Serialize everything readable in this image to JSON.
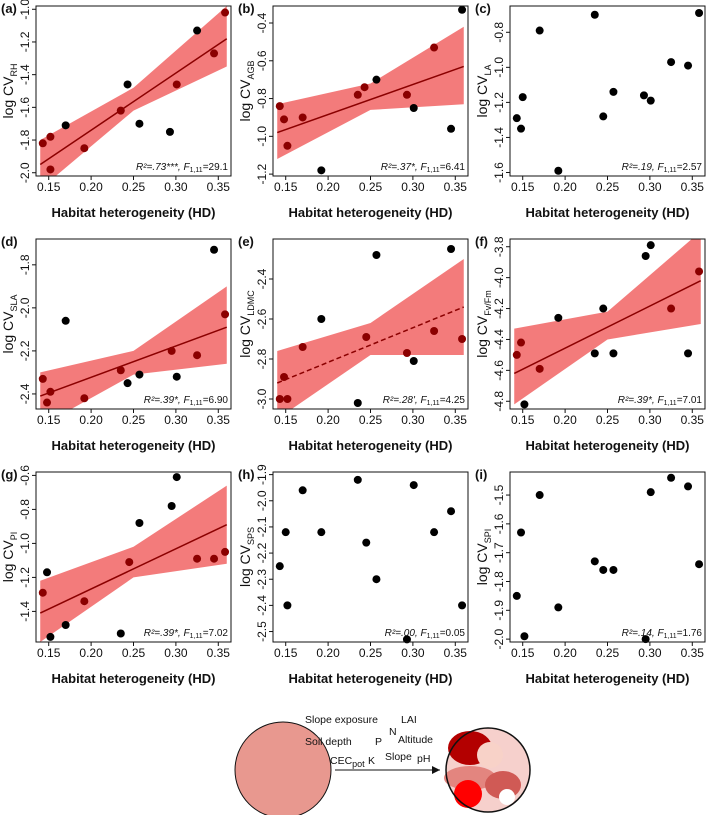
{
  "chart_data": [
    {
      "type": "scatter",
      "panel": "(a)",
      "ylabel": [
        "log CV",
        "RH"
      ],
      "xlabel": "Habitat heterogeneity (HD)",
      "x": [
        0.143,
        0.152,
        0.152,
        0.17,
        0.192,
        0.235,
        0.243,
        0.257,
        0.293,
        0.301,
        0.325,
        0.345,
        0.358
      ],
      "y": [
        -1.82,
        -1.78,
        -1.98,
        -1.71,
        -1.85,
        -1.62,
        -1.46,
        -1.7,
        -1.75,
        -1.46,
        -1.13,
        -1.27,
        -1.02
      ],
      "xlim": [
        0.135,
        0.365
      ],
      "xticks": [
        {
          "value": 0.15,
          "label": "0.15"
        },
        {
          "value": 0.2,
          "label": "0.20"
        },
        {
          "value": 0.25,
          "label": "0.25"
        },
        {
          "value": 0.3,
          "label": "0.30"
        },
        {
          "value": 0.35,
          "label": "0.35"
        }
      ],
      "ylim": [
        -2.02,
        -0.98
      ],
      "yticks": [
        {
          "value": -2,
          "label": "-2.0"
        },
        -1.8,
        -1.6,
        -1.4,
        -1.2,
        {
          "value": -1,
          "label": "-1.0"
        }
      ],
      "fit": {
        "x": [
          0.14,
          0.36
        ],
        "y": [
          -1.95,
          -1.18
        ],
        "dashed": false,
        "color": "#8b0000"
      },
      "band": {
        "x": [
          0.14,
          0.25,
          0.36
        ],
        "lower": [
          -2.1,
          -1.62,
          -1.35
        ],
        "upper": [
          -1.8,
          -1.48,
          -0.98
        ],
        "color": "#f26d6d"
      },
      "annotation": [
        "R²=.73***, ",
        "F",
        "1,11",
        "=29.1"
      ],
      "color": "#000000",
      "inside_color": "#8b0000"
    },
    {
      "type": "scatter",
      "panel": "(b)",
      "ylabel": [
        "log CV",
        "AGB"
      ],
      "xlabel": "Habitat heterogeneity (HD)",
      "x": [
        0.143,
        0.148,
        0.152,
        0.17,
        0.192,
        0.235,
        0.243,
        0.257,
        0.293,
        0.301,
        0.325,
        0.345,
        0.358
      ],
      "y": [
        -0.84,
        -0.91,
        -1.05,
        -0.9,
        -1.18,
        -0.78,
        -0.74,
        -0.7,
        -0.78,
        -0.85,
        -0.53,
        -0.96,
        -0.33
      ],
      "xlim": [
        0.135,
        0.365
      ],
      "xticks": [
        {
          "value": 0.15,
          "label": "0.15"
        },
        {
          "value": 0.2,
          "label": "0.20"
        },
        {
          "value": 0.25,
          "label": "0.25"
        },
        {
          "value": 0.3,
          "label": "0.30"
        },
        {
          "value": 0.35,
          "label": "0.35"
        }
      ],
      "ylim": [
        -1.21,
        -0.31
      ],
      "yticks": [
        -1.2,
        {
          "value": -1,
          "label": "-1.0"
        },
        -0.8,
        -0.6,
        -0.4
      ],
      "fit": {
        "x": [
          0.14,
          0.36
        ],
        "y": [
          -0.98,
          -0.63
        ],
        "dashed": false,
        "color": "#8b0000"
      },
      "band": {
        "x": [
          0.14,
          0.25,
          0.36
        ],
        "lower": [
          -1.12,
          -0.86,
          -0.83
        ],
        "upper": [
          -0.83,
          -0.72,
          -0.42
        ],
        "color": "#f26d6d"
      },
      "annotation": [
        "R²=.37*, ",
        "F",
        "1,11",
        "=6.41"
      ],
      "color": "#000000",
      "inside_color": "#8b0000"
    },
    {
      "type": "scatter",
      "panel": "(c)",
      "ylabel": [
        "log CV",
        "LA"
      ],
      "xlabel": "Habitat heterogeneity (HD)",
      "x": [
        0.143,
        0.148,
        0.15,
        0.17,
        0.192,
        0.235,
        0.245,
        0.257,
        0.293,
        0.301,
        0.325,
        0.345,
        0.358
      ],
      "y": [
        -1.29,
        -1.35,
        -1.17,
        -0.79,
        -1.59,
        -0.7,
        -1.28,
        -1.14,
        -1.16,
        -1.19,
        -0.97,
        -0.99,
        -0.69
      ],
      "xlim": [
        0.135,
        0.365
      ],
      "xticks": [
        {
          "value": 0.15,
          "label": "0.15"
        },
        {
          "value": 0.2,
          "label": "0.20"
        },
        {
          "value": 0.25,
          "label": "0.25"
        },
        {
          "value": 0.3,
          "label": "0.30"
        },
        {
          "value": 0.35,
          "label": "0.35"
        }
      ],
      "ylim": [
        -1.62,
        -0.65
      ],
      "yticks": [
        -1.6,
        -1.4,
        -1.2,
        {
          "value": -1,
          "label": "-1.0"
        },
        -0.8
      ],
      "annotation": [
        "R²=.19, ",
        "F",
        "1,11",
        "=2.57"
      ],
      "color": "#000000",
      "inside_color": "#8b0000"
    },
    {
      "type": "scatter",
      "panel": "(d)",
      "ylabel": [
        "log CV",
        "SLA"
      ],
      "xlabel": "Habitat heterogeneity (HD)",
      "x": [
        0.143,
        0.148,
        0.152,
        0.17,
        0.192,
        0.235,
        0.243,
        0.257,
        0.295,
        0.301,
        0.325,
        0.345,
        0.358
      ],
      "y": [
        -2.33,
        -2.44,
        -2.39,
        -2.06,
        -2.42,
        -2.29,
        -2.35,
        -2.31,
        -2.2,
        -2.32,
        -2.22,
        -1.73,
        -2.03
      ],
      "xlim": [
        0.135,
        0.365
      ],
      "xticks": [
        {
          "value": 0.15,
          "label": "0.15"
        },
        {
          "value": 0.2,
          "label": "0.20"
        },
        {
          "value": 0.25,
          "label": "0.25"
        },
        {
          "value": 0.3,
          "label": "0.30"
        },
        {
          "value": 0.35,
          "label": "0.35"
        }
      ],
      "ylim": [
        -2.47,
        -1.68
      ],
      "yticks": [
        -2.4,
        -2.2,
        {
          "value": -2,
          "label": "-2.0"
        },
        -1.8
      ],
      "fit": {
        "x": [
          0.14,
          0.36
        ],
        "y": [
          -2.41,
          -2.09
        ],
        "dashed": false,
        "color": "#8b0000"
      },
      "band": {
        "x": [
          0.14,
          0.25,
          0.36
        ],
        "lower": [
          -2.55,
          -2.31,
          -2.26
        ],
        "upper": [
          -2.3,
          -2.2,
          -1.9
        ],
        "color": "#f26d6d"
      },
      "annotation": [
        "R²=.39*, ",
        "F",
        "1,11",
        "=6.90"
      ],
      "color": "#000000",
      "inside_color": "#8b0000"
    },
    {
      "type": "scatter",
      "panel": "(e)",
      "ylabel": [
        "log CV",
        "LDMC"
      ],
      "xlabel": "Habitat heterogeneity (HD)",
      "x": [
        0.143,
        0.148,
        0.152,
        0.17,
        0.192,
        0.235,
        0.245,
        0.257,
        0.293,
        0.301,
        0.325,
        0.345,
        0.358
      ],
      "y": [
        -3,
        -2.89,
        -3,
        -2.74,
        -2.6,
        -3.02,
        -2.69,
        -2.28,
        -2.77,
        -2.81,
        -2.66,
        -2.25,
        -2.7
      ],
      "xlim": [
        0.135,
        0.365
      ],
      "xticks": [
        {
          "value": 0.15,
          "label": "0.15"
        },
        {
          "value": 0.2,
          "label": "0.20"
        },
        {
          "value": 0.25,
          "label": "0.25"
        },
        {
          "value": 0.3,
          "label": "0.30"
        },
        {
          "value": 0.35,
          "label": "0.35"
        }
      ],
      "ylim": [
        -3.05,
        -2.2
      ],
      "yticks": [
        {
          "value": -3,
          "label": "-3.0"
        },
        -2.8,
        -2.6,
        -2.4
      ],
      "fit": {
        "x": [
          0.14,
          0.36
        ],
        "y": [
          -2.92,
          -2.54
        ],
        "dashed": true,
        "color": "#8b0000"
      },
      "band": {
        "x": [
          0.14,
          0.25,
          0.36
        ],
        "lower": [
          -3.1,
          -2.78,
          -2.78
        ],
        "upper": [
          -2.76,
          -2.62,
          -2.3
        ],
        "color": "#f26d6d"
      },
      "annotation": [
        "R²=.28', ",
        "F",
        "1,11",
        "=4.25"
      ],
      "color": "#000000",
      "inside_color": "#8b0000"
    },
    {
      "type": "scatter",
      "panel": "(f)",
      "ylabel": [
        "log CV",
        "Fv/Fm"
      ],
      "xlabel": "Habitat heterogeneity (HD)",
      "x": [
        0.143,
        0.148,
        0.152,
        0.17,
        0.192,
        0.235,
        0.245,
        0.257,
        0.295,
        0.301,
        0.325,
        0.345,
        0.358
      ],
      "y": [
        -4.5,
        -4.42,
        -4.82,
        -4.59,
        -4.26,
        -4.49,
        -4.2,
        -4.49,
        -3.86,
        -3.79,
        -4.2,
        -4.49,
        -3.96
      ],
      "xlim": [
        0.135,
        0.365
      ],
      "xticks": [
        {
          "value": 0.15,
          "label": "0.15"
        },
        {
          "value": 0.2,
          "label": "0.20"
        },
        {
          "value": 0.25,
          "label": "0.25"
        },
        {
          "value": 0.3,
          "label": "0.30"
        },
        {
          "value": 0.35,
          "label": "0.35"
        }
      ],
      "ylim": [
        -4.85,
        -3.75
      ],
      "yticks": [
        -4.8,
        -4.6,
        -4.4,
        -4.2,
        {
          "value": -4,
          "label": "-4.0"
        },
        -3.8
      ],
      "fit": {
        "x": [
          0.14,
          0.36
        ],
        "y": [
          -4.62,
          -4.02
        ],
        "dashed": false,
        "color": "#8b0000"
      },
      "band": {
        "x": [
          0.14,
          0.25,
          0.36
        ],
        "lower": [
          -4.82,
          -4.4,
          -4.3
        ],
        "upper": [
          -4.33,
          -4.22,
          -3.7
        ],
        "color": "#f26d6d"
      },
      "annotation": [
        "R²=.39*, ",
        "F",
        "1,11",
        "=7.01"
      ],
      "color": "#000000",
      "inside_color": "#8b0000"
    },
    {
      "type": "scatter",
      "panel": "(g)",
      "ylabel": [
        "log CV",
        "PI"
      ],
      "xlabel": "Habitat heterogeneity (HD)",
      "x": [
        0.143,
        0.148,
        0.152,
        0.17,
        0.192,
        0.235,
        0.245,
        0.257,
        0.295,
        0.301,
        0.325,
        0.345,
        0.358
      ],
      "y": [
        -1.29,
        -1.17,
        -1.55,
        -1.48,
        -1.34,
        -1.53,
        -1.11,
        -0.88,
        -0.78,
        -0.61,
        -1.09,
        -1.09,
        -1.05
      ],
      "xlim": [
        0.135,
        0.365
      ],
      "xticks": [
        {
          "value": 0.15,
          "label": "0.15"
        },
        {
          "value": 0.2,
          "label": "0.20"
        },
        {
          "value": 0.25,
          "label": "0.25"
        },
        {
          "value": 0.3,
          "label": "0.30"
        },
        {
          "value": 0.35,
          "label": "0.35"
        }
      ],
      "ylim": [
        -1.58,
        -0.58
      ],
      "yticks": [
        -1.4,
        -1.2,
        {
          "value": -1,
          "label": "-1.0"
        },
        -0.8,
        -0.6
      ],
      "fit": {
        "x": [
          0.14,
          0.36
        ],
        "y": [
          -1.41,
          -0.89
        ],
        "dashed": false,
        "color": "#8b0000"
      },
      "band": {
        "x": [
          0.14,
          0.25,
          0.36
        ],
        "lower": [
          -1.58,
          -1.2,
          -1.12
        ],
        "upper": [
          -1.22,
          -1.02,
          -0.66
        ],
        "color": "#f26d6d"
      },
      "annotation": [
        "R²=.39*, ",
        "F",
        "1,11",
        "=7.02"
      ],
      "color": "#000000",
      "inside_color": "#8b0000"
    },
    {
      "type": "scatter",
      "panel": "(h)",
      "ylabel": [
        "log CV",
        "SPS"
      ],
      "xlabel": "Habitat heterogeneity (HD)",
      "x": [
        0.143,
        0.15,
        0.152,
        0.17,
        0.192,
        0.235,
        0.245,
        0.257,
        0.293,
        0.301,
        0.325,
        0.345,
        0.358
      ],
      "y": [
        -2.25,
        -2.12,
        -2.4,
        -1.96,
        -2.12,
        -1.92,
        -2.16,
        -2.3,
        -2.53,
        -1.94,
        -2.12,
        -2.04,
        -2.4
      ],
      "xlim": [
        0.135,
        0.365
      ],
      "xticks": [
        {
          "value": 0.15,
          "label": "0.15"
        },
        {
          "value": 0.2,
          "label": "0.20"
        },
        {
          "value": 0.25,
          "label": "0.25"
        },
        {
          "value": 0.3,
          "label": "0.30"
        },
        {
          "value": 0.35,
          "label": "0.35"
        }
      ],
      "ylim": [
        -2.54,
        -1.89
      ],
      "yticks": [
        -2.5,
        -2.4,
        -2.3,
        -2.2,
        -2.1,
        {
          "value": -2,
          "label": "-2.0"
        },
        -1.9
      ],
      "annotation": [
        "R²=.00, ",
        "F",
        "1,11",
        "=0.05"
      ],
      "color": "#000000",
      "inside_color": "#8b0000"
    },
    {
      "type": "scatter",
      "panel": "(i)",
      "ylabel": [
        "log CV",
        "SPI"
      ],
      "xlabel": "Habitat heterogeneity (HD)",
      "x": [
        0.143,
        0.148,
        0.152,
        0.17,
        0.192,
        0.235,
        0.245,
        0.257,
        0.295,
        0.301,
        0.325,
        0.345,
        0.358
      ],
      "y": [
        -1.85,
        -1.63,
        -1.99,
        -1.5,
        -1.89,
        -1.73,
        -1.76,
        -1.76,
        -2,
        -1.49,
        -1.44,
        -1.47,
        -1.74
      ],
      "xlim": [
        0.135,
        0.365
      ],
      "xticks": [
        {
          "value": 0.15,
          "label": "0.15"
        },
        {
          "value": 0.2,
          "label": "0.20"
        },
        {
          "value": 0.25,
          "label": "0.25"
        },
        {
          "value": 0.3,
          "label": "0.30"
        },
        {
          "value": 0.35,
          "label": "0.35"
        }
      ],
      "ylim": [
        -2.01,
        -1.42
      ],
      "yticks": [
        {
          "value": -2,
          "label": "-2.0"
        },
        -1.9,
        -1.8,
        -1.7,
        -1.6,
        -1.5
      ],
      "annotation": [
        "R²=.14, ",
        "F",
        "1,11",
        "=1.76"
      ],
      "color": "#000000",
      "inside_color": "#8b0000"
    }
  ],
  "diagram": {
    "factors": [
      "Slope exposure",
      "LAI",
      "N",
      "Soil depth",
      "P",
      "Altitude",
      "CEC",
      "pot",
      "K",
      "Slope",
      "pH"
    ]
  }
}
